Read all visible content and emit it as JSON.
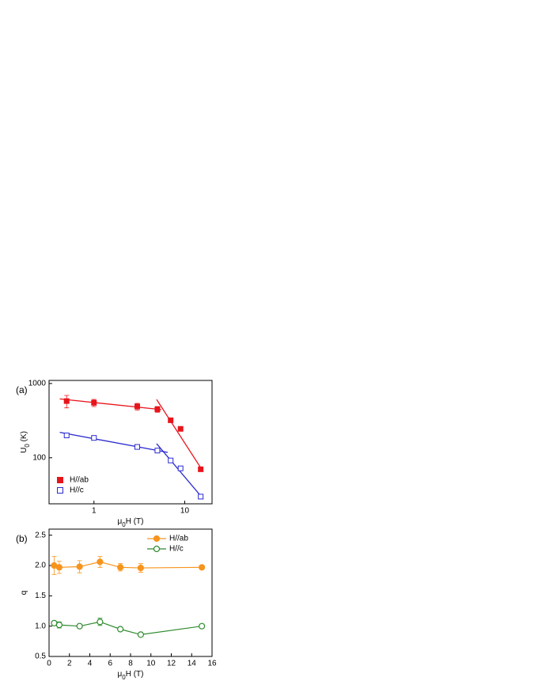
{
  "chart_data": [
    {
      "type": "scatter",
      "panel_label": "(a)",
      "ylabel": {
        "main": "U",
        "sub": "0",
        "unit": " (K)"
      },
      "xlabel": {
        "main": "μ",
        "sub": "0",
        "unit": "H (T)"
      },
      "xlog": true,
      "ylog": true,
      "xlim": [
        0.32,
        20
      ],
      "ylim": [
        24,
        1100
      ],
      "xticks": [
        1,
        10
      ],
      "yticks": [
        100,
        1000
      ],
      "legend": "lower left",
      "series": [
        {
          "name": "H//ab",
          "color": "#e8141b",
          "marker": "square",
          "filled": true,
          "x": [
            0.5,
            1,
            3,
            5,
            7,
            9,
            15
          ],
          "values": [
            580,
            550,
            490,
            450,
            320,
            245,
            70
          ],
          "errors": [
            110,
            60,
            50,
            40,
            0,
            0,
            0
          ]
        },
        {
          "name": "H//c",
          "color": "#2a2ad0",
          "marker": "square",
          "filled": false,
          "x": [
            0.5,
            1,
            3,
            5,
            7,
            9,
            15
          ],
          "values": [
            200,
            185,
            140,
            125,
            92,
            72,
            30
          ],
          "errors": [
            8,
            5,
            6,
            6,
            5,
            5,
            2
          ]
        }
      ],
      "fit_lines": [
        {
          "color": "#e8141b",
          "x": [
            0.42,
            5.5
          ],
          "y": [
            620,
            445
          ]
        },
        {
          "color": "#e8141b",
          "x": [
            4.9,
            16
          ],
          "y": [
            610,
            65
          ]
        },
        {
          "color": "#2a2ad0",
          "x": [
            0.42,
            6.5
          ],
          "y": [
            220,
            118
          ]
        },
        {
          "color": "#2a2ad0",
          "x": [
            4.9,
            16
          ],
          "y": [
            155,
            28
          ]
        }
      ]
    },
    {
      "type": "line",
      "panel_label": "(b)",
      "ylabel": {
        "main": "q"
      },
      "xlabel": {
        "main": "μ",
        "sub": "0",
        "unit": "H (T)"
      },
      "xlim": [
        0,
        16
      ],
      "ylim": [
        0.5,
        2.6
      ],
      "xticks": [
        0,
        2,
        4,
        6,
        8,
        10,
        12,
        14,
        16
      ],
      "yticks": [
        0.5,
        {
          "value": 1,
          "label": "1.0"
        },
        1.5,
        {
          "value": 2,
          "label": "2.0"
        },
        2.5
      ],
      "legend": "upper right",
      "series": [
        {
          "name": "H//ab",
          "color": "#f7941d",
          "marker": "circle",
          "filled": true,
          "x": [
            0.5,
            1,
            3,
            5,
            7,
            9,
            15
          ],
          "values": [
            2.0,
            1.97,
            1.98,
            2.06,
            1.97,
            1.96,
            1.97
          ],
          "errors": [
            0.15,
            0.1,
            0.1,
            0.09,
            0.06,
            0.07,
            0.02
          ]
        },
        {
          "name": "H//c",
          "color": "#2e8b2e",
          "marker": "circle",
          "filled": false,
          "x": [
            0.5,
            1,
            3,
            5,
            7,
            9,
            15
          ],
          "values": [
            1.05,
            1.02,
            1.0,
            1.07,
            0.95,
            0.86,
            1.0
          ],
          "errors": [
            0.03,
            0.05,
            0.02,
            0.06,
            0.02,
            0.02,
            0.02
          ]
        }
      ]
    }
  ]
}
